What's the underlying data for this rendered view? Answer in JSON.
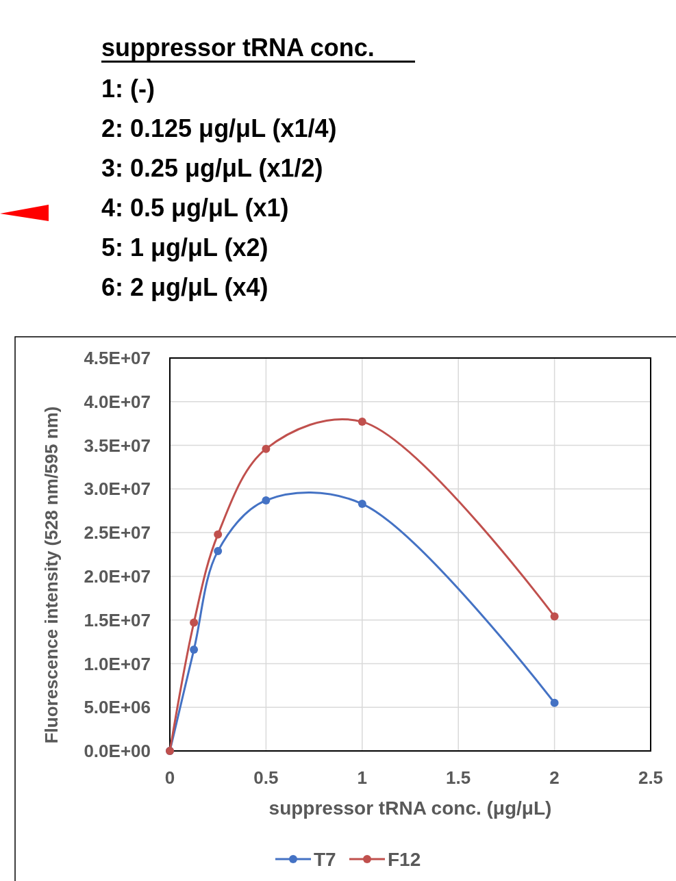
{
  "chart_data": {
    "type": "line",
    "title": "suppressor tRNA conc.",
    "annotations": [
      "1: (-)",
      "2: 0.125 μg/μL (x1/4)",
      "3: 0.25 μg/μL (x1/2)",
      "4: 0.5 μg/μL (x1)",
      "5: 1 μg/μL (x2)",
      "6: 2 μg/μL (x4)"
    ],
    "xlabel": "suppressor tRNA conc. (μg/μL)",
    "ylabel": "Fluorescence intensity (528 nm/595 nm)",
    "x": [
      0,
      0.125,
      0.25,
      0.5,
      1,
      2
    ],
    "series": [
      {
        "name": "T7",
        "color": "#4472c4",
        "values": [
          0,
          11600000,
          22900000,
          28700000,
          28300000,
          5500000
        ]
      },
      {
        "name": "F12",
        "color": "#c0504d",
        "values": [
          0,
          14700000,
          24800000,
          34600000,
          37700000,
          15400000
        ]
      }
    ],
    "xlim": [
      0,
      2.5
    ],
    "xticks": [
      0,
      0.5,
      1,
      1.5,
      2,
      2.5
    ],
    "ylim": [
      0,
      45000000
    ],
    "yticks": [
      {
        "value": 0,
        "label": "0.0E+00"
      },
      {
        "value": 5000000,
        "label": "5.0E+06"
      },
      {
        "value": 10000000,
        "label": "1.0E+07"
      },
      {
        "value": 15000000,
        "label": "1.5E+07"
      },
      {
        "value": 20000000,
        "label": "2.0E+07"
      },
      {
        "value": 25000000,
        "label": "2.5E+07"
      },
      {
        "value": 30000000,
        "label": "3.0E+07"
      },
      {
        "value": 35000000,
        "label": "3.5E+07"
      },
      {
        "value": 40000000,
        "label": "4.0E+07"
      },
      {
        "value": 45000000,
        "label": "4.5E+07"
      }
    ],
    "grid": true,
    "legend": "bottom",
    "marker": "circle",
    "line_style": "solid"
  }
}
